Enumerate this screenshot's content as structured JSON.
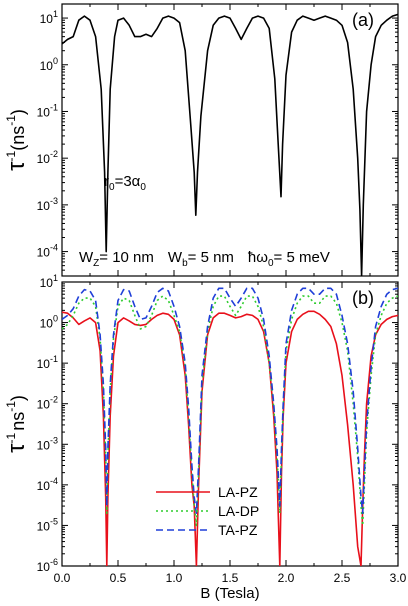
{
  "chart_data": [
    {
      "type": "line",
      "panel_label": "(a)",
      "ylabel_main": "τ",
      "ylabel_sup": "-1",
      "ylabel_unit": "(ns",
      "ylabel_unit_sup": "-1",
      "ylabel_close": ")",
      "yscale": "log",
      "ylim": [
        3e-05,
        20
      ],
      "xlim": [
        0,
        3
      ],
      "grid": false,
      "y_ticks": [
        {
          "v": 10,
          "base": "10",
          "exp": "1"
        },
        {
          "v": 1,
          "base": "10",
          "exp": "0"
        },
        {
          "v": 0.1,
          "base": "10",
          "exp": "-1"
        },
        {
          "v": 0.01,
          "base": "10",
          "exp": "-2"
        },
        {
          "v": 0.001,
          "base": "10",
          "exp": "-3"
        },
        {
          "v": 0.0001,
          "base": "10",
          "exp": "-4"
        }
      ],
      "annotations": {
        "r0_main": "r",
        "r0_sub": "0",
        "r0_mid": "=3α",
        "r0_sub2": "0",
        "params": {
          "w": "W",
          "wz_sub": "Z",
          "wz_val": "= 10 nm",
          "wb_sub": "b",
          "wb_val": "= 5 nm",
          "hw": "ħω",
          "hw_sub": "0",
          "hw_val": "= 5 meV"
        }
      },
      "series": [
        {
          "color": "#000000",
          "style": "solid",
          "x": [
            0.0,
            0.05,
            0.1,
            0.15,
            0.2,
            0.25,
            0.3,
            0.35,
            0.38,
            0.395,
            0.41,
            0.43,
            0.47,
            0.5,
            0.55,
            0.6,
            0.65,
            0.7,
            0.75,
            0.8,
            0.85,
            0.9,
            0.95,
            1.0,
            1.05,
            1.1,
            1.15,
            1.18,
            1.195,
            1.21,
            1.24,
            1.3,
            1.35,
            1.4,
            1.45,
            1.5,
            1.55,
            1.6,
            1.65,
            1.7,
            1.75,
            1.8,
            1.85,
            1.9,
            1.93,
            1.955,
            1.97,
            2.0,
            2.05,
            2.1,
            2.15,
            2.2,
            2.25,
            2.3,
            2.35,
            2.4,
            2.45,
            2.5,
            2.55,
            2.6,
            2.64,
            2.66,
            2.675,
            2.69,
            2.72,
            2.76,
            2.8,
            2.85,
            2.9,
            2.95,
            3.0
          ],
          "y": [
            2.8,
            3.5,
            4,
            9,
            11,
            9,
            4,
            0.3,
            0.005,
            0.0001,
            0.005,
            0.3,
            4,
            9,
            10,
            7,
            4,
            4,
            4.5,
            4,
            6,
            10,
            11,
            10,
            8,
            2,
            0.05,
            0.005,
            0.0006,
            0.005,
            0.08,
            2,
            7,
            10,
            11,
            10,
            6,
            3.5,
            6,
            10,
            11,
            10,
            6,
            0.5,
            0.02,
            0.0015,
            0.02,
            0.6,
            5,
            9,
            11,
            10,
            9,
            10,
            11,
            10,
            9,
            7,
            3,
            0.3,
            0.01,
            0.0008,
            3e-05,
            0.001,
            0.1,
            1,
            4,
            7,
            9,
            11,
            12
          ]
        }
      ]
    },
    {
      "type": "line",
      "panel_label": "(b)",
      "ylabel_main": "τ",
      "ylabel_sup": "-1",
      "ylabel_unit": "ns",
      "ylabel_unit_sup": "-1",
      "ylabel_close": ")",
      "yscale": "log",
      "ylim": [
        1e-06,
        10
      ],
      "xlim": [
        0,
        3
      ],
      "grid": false,
      "xlabel": "B (Tesla)",
      "x_ticks": [
        "0.0",
        "0.5",
        "1.0",
        "1.5",
        "2.0",
        "2.5",
        "3.0"
      ],
      "y_ticks": [
        {
          "v": 10,
          "base": "10",
          "exp": "1"
        },
        {
          "v": 1,
          "base": "10",
          "exp": "0"
        },
        {
          "v": 0.1,
          "base": "10",
          "exp": "-1"
        },
        {
          "v": 0.01,
          "base": "10",
          "exp": "-2"
        },
        {
          "v": 0.001,
          "base": "10",
          "exp": "-3"
        },
        {
          "v": 0.0001,
          "base": "10",
          "exp": "-4"
        },
        {
          "v": 1e-05,
          "base": "10",
          "exp": "-5"
        },
        {
          "v": 1e-06,
          "base": "10",
          "exp": "-6"
        }
      ],
      "legend_position": "lower-center",
      "series": [
        {
          "name": "LA-PZ",
          "color": "#e8101b",
          "style": "solid",
          "x": [
            0.0,
            0.05,
            0.1,
            0.15,
            0.2,
            0.25,
            0.3,
            0.34,
            0.37,
            0.39,
            0.4,
            0.41,
            0.43,
            0.46,
            0.5,
            0.55,
            0.6,
            0.65,
            0.7,
            0.75,
            0.8,
            0.85,
            0.9,
            0.95,
            1.0,
            1.05,
            1.1,
            1.13,
            1.16,
            1.18,
            1.2,
            1.22,
            1.25,
            1.3,
            1.35,
            1.4,
            1.45,
            1.5,
            1.55,
            1.6,
            1.65,
            1.7,
            1.75,
            1.8,
            1.85,
            1.89,
            1.92,
            1.945,
            1.96,
            1.975,
            2.0,
            2.05,
            2.1,
            2.15,
            2.2,
            2.25,
            2.3,
            2.35,
            2.4,
            2.45,
            2.5,
            2.55,
            2.6,
            2.64,
            2.67,
            2.685,
            2.7,
            2.72,
            2.76,
            2.8,
            2.85,
            2.9,
            2.95,
            3.0
          ],
          "y": [
            1.8,
            1.7,
            1.3,
            0.9,
            1.1,
            1.3,
            1.0,
            0.2,
            0.005,
            5e-05,
            1e-06,
            5e-05,
            0.005,
            0.15,
            1.0,
            1.3,
            1.1,
            0.9,
            0.85,
            0.9,
            1.2,
            1.5,
            1.7,
            1.6,
            1.2,
            0.5,
            0.05,
            0.003,
            0.0001,
            3e-05,
            1e-06,
            0.0001,
            0.02,
            0.5,
            1.3,
            1.7,
            1.7,
            1.5,
            1.3,
            1.4,
            1.6,
            1.5,
            1.2,
            0.6,
            0.1,
            0.005,
            0.0002,
            1e-06,
            0.0002,
            0.005,
            0.1,
            0.6,
            1.2,
            1.6,
            1.9,
            1.9,
            1.6,
            1.2,
            0.8,
            0.3,
            0.05,
            0.003,
            0.0001,
            3e-06,
            1e-06,
            3e-05,
            0.0005,
            0.01,
            0.15,
            0.5,
            0.9,
            1.2,
            1.4,
            1.5
          ]
        },
        {
          "name": "LA-DP",
          "color": "#2ecc2e",
          "style": "dotted",
          "x": [
            0.0,
            0.05,
            0.1,
            0.15,
            0.2,
            0.25,
            0.3,
            0.34,
            0.37,
            0.39,
            0.4,
            0.41,
            0.43,
            0.46,
            0.5,
            0.55,
            0.6,
            0.65,
            0.7,
            0.75,
            0.8,
            0.85,
            0.9,
            0.95,
            1.0,
            1.05,
            1.1,
            1.13,
            1.16,
            1.18,
            1.2,
            1.22,
            1.25,
            1.3,
            1.35,
            1.4,
            1.45,
            1.5,
            1.55,
            1.6,
            1.65,
            1.7,
            1.75,
            1.8,
            1.85,
            1.89,
            1.92,
            1.945,
            1.96,
            1.975,
            2.0,
            2.05,
            2.1,
            2.15,
            2.2,
            2.25,
            2.3,
            2.35,
            2.4,
            2.45,
            2.5,
            2.55,
            2.6,
            2.64,
            2.67,
            2.685,
            2.7,
            2.72,
            2.76,
            2.8,
            2.85,
            2.9,
            2.95,
            3.0
          ],
          "y": [
            0.7,
            0.9,
            1.5,
            3.0,
            4.0,
            4.0,
            2.5,
            0.4,
            0.02,
            0.0005,
            2e-05,
            0.0005,
            0.02,
            0.4,
            2.5,
            4.0,
            3.5,
            1.5,
            0.7,
            0.8,
            1.5,
            3.5,
            4.5,
            3.5,
            1.5,
            0.6,
            0.08,
            0.005,
            0.0002,
            3e-05,
            1e-05,
            0.0002,
            0.03,
            0.6,
            2.5,
            4.5,
            4.5,
            2.5,
            1.5,
            2.5,
            4.5,
            4.5,
            2.5,
            0.8,
            0.1,
            0.008,
            0.0005,
            2e-05,
            0.0005,
            0.008,
            0.2,
            1.2,
            3.0,
            4.5,
            4.5,
            3.0,
            3.0,
            4.5,
            4.5,
            3.0,
            1.0,
            0.2,
            0.01,
            0.0005,
            3e-05,
            1e-05,
            0.0001,
            0.002,
            0.05,
            0.5,
            1.5,
            3.0,
            4.0,
            4.5
          ]
        },
        {
          "name": "TA-PZ",
          "color": "#1f3fd8",
          "style": "dashed",
          "x": [
            0.0,
            0.05,
            0.1,
            0.15,
            0.2,
            0.25,
            0.3,
            0.34,
            0.37,
            0.39,
            0.4,
            0.41,
            0.43,
            0.46,
            0.5,
            0.55,
            0.6,
            0.65,
            0.7,
            0.75,
            0.8,
            0.85,
            0.9,
            0.95,
            1.0,
            1.05,
            1.1,
            1.13,
            1.16,
            1.18,
            1.2,
            1.22,
            1.25,
            1.3,
            1.35,
            1.4,
            1.45,
            1.5,
            1.55,
            1.6,
            1.65,
            1.7,
            1.75,
            1.8,
            1.85,
            1.89,
            1.92,
            1.945,
            1.96,
            1.975,
            2.0,
            2.05,
            2.1,
            2.15,
            2.2,
            2.25,
            2.3,
            2.35,
            2.4,
            2.45,
            2.5,
            2.55,
            2.6,
            2.64,
            2.67,
            2.685,
            2.7,
            2.72,
            2.76,
            2.8,
            2.85,
            2.9,
            2.95,
            3.0
          ],
          "y": [
            1.2,
            1.5,
            2.2,
            4.5,
            6.5,
            6.0,
            3.5,
            0.5,
            0.03,
            0.0008,
            3e-05,
            0.0008,
            0.03,
            0.5,
            3.5,
            6.5,
            6.0,
            2.5,
            1.2,
            1.3,
            2.5,
            5.5,
            7.0,
            6.0,
            2.5,
            0.8,
            0.1,
            0.008,
            0.0003,
            5e-05,
            2e-05,
            0.0003,
            0.05,
            0.8,
            4.0,
            7.0,
            7.0,
            4.0,
            2.5,
            4.0,
            7.0,
            7.0,
            4.0,
            1.2,
            0.15,
            0.01,
            0.0008,
            3e-05,
            0.0008,
            0.01,
            0.3,
            2.0,
            5.0,
            7.0,
            7.0,
            5.0,
            5.0,
            7.0,
            7.0,
            5.0,
            1.5,
            0.3,
            0.02,
            0.0008,
            5e-05,
            2e-05,
            0.0002,
            0.003,
            0.08,
            0.8,
            2.5,
            5.0,
            6.5,
            7.0
          ]
        }
      ]
    }
  ]
}
